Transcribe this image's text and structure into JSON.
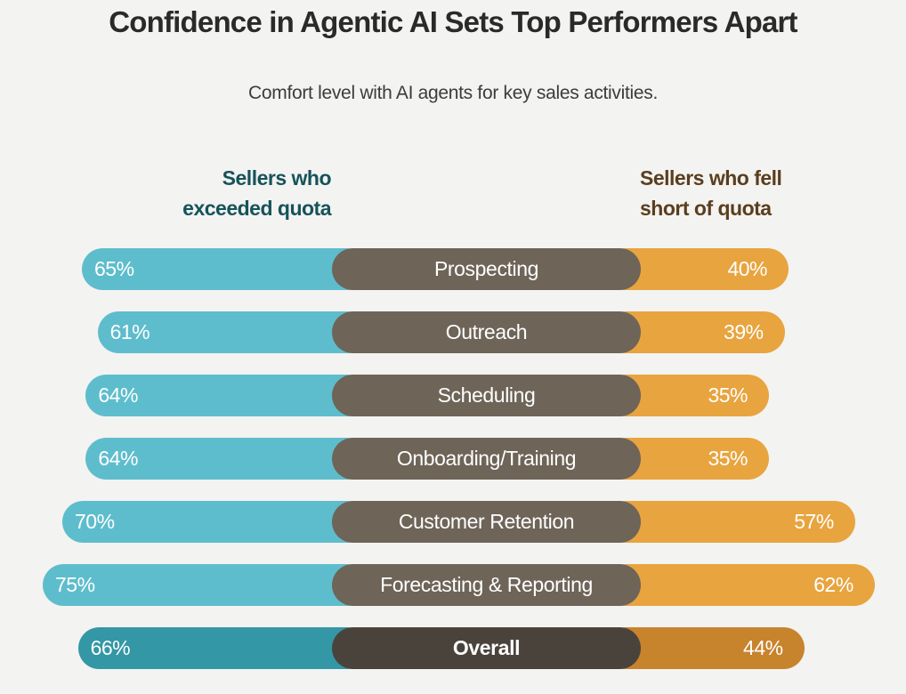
{
  "colors": {
    "background": "#F3F3F1",
    "exceeded": "#5EBDCC",
    "exceeded_overall": "#3497A6",
    "short": "#E8A43F",
    "short_overall": "#C8832D",
    "category_pill": "#6E6458",
    "category_pill_overall": "#4A433C",
    "legend_exceeded": "#16535A",
    "legend_short": "#5A3E1E"
  },
  "chart_data": {
    "type": "bar",
    "orientation": "horizontal-diverging",
    "title": "Confidence in Agentic AI Sets Top Performers Apart",
    "subtitle": "Comfort level with AI agents for key sales activities.",
    "categories": [
      "Prospecting",
      "Outreach",
      "Scheduling",
      "Onboarding/Training",
      "Customer Retention",
      "Forecasting & Reporting",
      "Overall"
    ],
    "series": [
      {
        "name": "Sellers who exceeded quota",
        "side": "left",
        "values": [
          65,
          61,
          64,
          64,
          70,
          75,
          66
        ],
        "labels": [
          "65%",
          "61%",
          "64%",
          "64%",
          "70%",
          "75%",
          "66%"
        ]
      },
      {
        "name": "Sellers who fell short of quota",
        "side": "right",
        "values": [
          40,
          39,
          35,
          35,
          57,
          62,
          44
        ],
        "labels": [
          "40%",
          "39%",
          "35%",
          "35%",
          "57%",
          "62%",
          "44%"
        ]
      }
    ],
    "legend": {
      "left_lines": [
        "Sellers who",
        "exceeded quota"
      ],
      "right_lines": [
        "Sellers who fell",
        "short of quota"
      ],
      "placement": "top"
    },
    "unit": "%",
    "highlight_category": "Overall"
  }
}
